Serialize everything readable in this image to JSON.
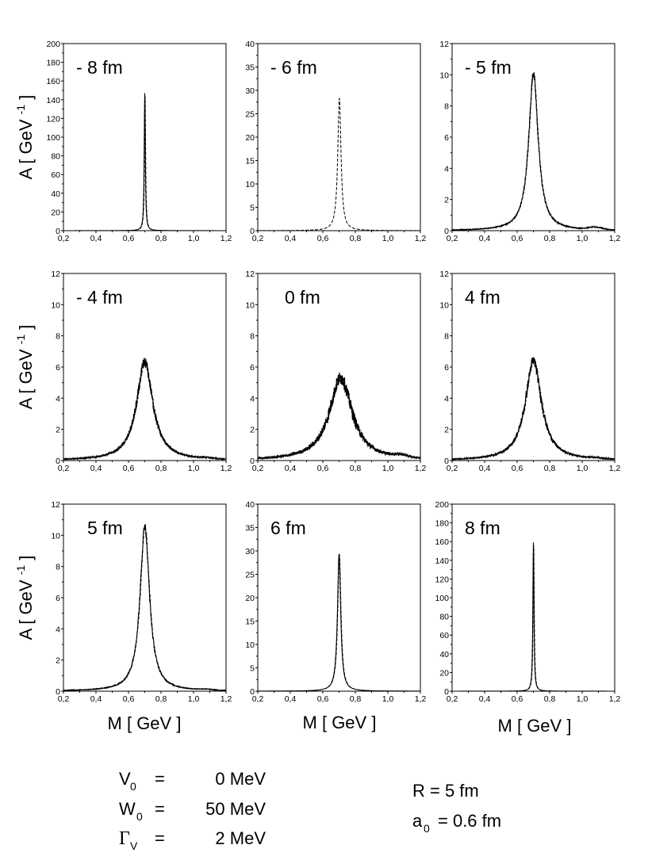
{
  "chart_data": [
    {
      "type": "line",
      "label": "- 8 fm",
      "ylim": [
        0,
        200
      ],
      "yticks": [
        "0",
        "20",
        "40",
        "60",
        "80",
        "100",
        "120",
        "140",
        "160",
        "180",
        "200"
      ],
      "xlim": [
        0.2,
        1.2
      ],
      "xticks": [
        "0,2",
        "0,4",
        "0,6",
        "0,8",
        "1,0",
        "1,2"
      ],
      "peak": {
        "x": 0.7,
        "y": 147
      },
      "width": 0.004,
      "noise": 0,
      "tail": 0,
      "dashed_only": false
    },
    {
      "type": "line",
      "label": "- 6 fm",
      "ylim": [
        0,
        40
      ],
      "yticks": [
        "0",
        "5",
        "10",
        "15",
        "20",
        "25",
        "30",
        "35",
        "40"
      ],
      "xlim": [
        0.2,
        1.2
      ],
      "xticks": [
        "0,2",
        "0,4",
        "0,6",
        "0,8",
        "1,0",
        "1,2"
      ],
      "peak": {
        "x": 0.7,
        "y": 28.3
      },
      "width": 0.012,
      "noise": 0,
      "tail": 0,
      "dashed_only": true
    },
    {
      "type": "line",
      "label": "- 5 fm",
      "ylim": [
        0,
        12
      ],
      "yticks": [
        "0",
        "2",
        "4",
        "6",
        "8",
        "10",
        "12"
      ],
      "xlim": [
        0.2,
        1.2
      ],
      "xticks": [
        "0,2",
        "0,4",
        "0,6",
        "0,8",
        "1,0",
        "1,2"
      ],
      "peak": {
        "x": 0.7,
        "y": 10.1
      },
      "width": 0.035,
      "noise": 0.25,
      "tail": 0.15,
      "dashed_only": false
    },
    {
      "type": "line",
      "label": "- 4 fm",
      "ylim": [
        0,
        12
      ],
      "yticks": [
        "0",
        "2",
        "4",
        "6",
        "8",
        "10",
        "12"
      ],
      "xlim": [
        0.2,
        1.2
      ],
      "xticks": [
        "0,2",
        "0,4",
        "0,6",
        "0,8",
        "1,0",
        "1,2"
      ],
      "peak": {
        "x": 0.7,
        "y": 6.3
      },
      "width": 0.06,
      "noise": 0.35,
      "tail": 0.05,
      "dashed_only": false
    },
    {
      "type": "line",
      "label": "0 fm",
      "ylim": [
        0,
        12
      ],
      "yticks": [
        "0",
        "2",
        "4",
        "6",
        "8",
        "10",
        "12"
      ],
      "xlim": [
        0.2,
        1.2
      ],
      "xticks": [
        "0,2",
        "0,4",
        "0,6",
        "0,8",
        "1,0",
        "1,2"
      ],
      "peak": {
        "x": 0.71,
        "y": 5.3
      },
      "width": 0.085,
      "noise": 0.45,
      "tail": 0.15,
      "dashed_only": false
    },
    {
      "type": "line",
      "label": "4 fm",
      "ylim": [
        0,
        12
      ],
      "yticks": [
        "0",
        "2",
        "4",
        "6",
        "8",
        "10",
        "12"
      ],
      "xlim": [
        0.2,
        1.2
      ],
      "xticks": [
        "0,2",
        "0,4",
        "0,6",
        "0,8",
        "1,0",
        "1,2"
      ],
      "peak": {
        "x": 0.7,
        "y": 6.4
      },
      "width": 0.06,
      "noise": 0.35,
      "tail": 0.05,
      "dashed_only": false
    },
    {
      "type": "line",
      "label": "5 fm",
      "ylim": [
        0,
        12
      ],
      "yticks": [
        "0",
        "2",
        "4",
        "6",
        "8",
        "10",
        "12"
      ],
      "xlim": [
        0.2,
        1.2
      ],
      "xticks": [
        "0,2",
        "0,4",
        "0,6",
        "0,8",
        "1,0",
        "1,2"
      ],
      "peak": {
        "x": 0.7,
        "y": 10.6
      },
      "width": 0.035,
      "noise": 0.25,
      "tail": 0.05,
      "dashed_only": false
    },
    {
      "type": "line",
      "label": "6 fm",
      "ylim": [
        0,
        40
      ],
      "yticks": [
        "0",
        "5",
        "10",
        "15",
        "20",
        "25",
        "30",
        "35",
        "40"
      ],
      "xlim": [
        0.2,
        1.2
      ],
      "xticks": [
        "0,2",
        "0,4",
        "0,6",
        "0,8",
        "1,0",
        "1,2"
      ],
      "peak": {
        "x": 0.7,
        "y": 29.3
      },
      "width": 0.012,
      "noise": 0,
      "tail": 0,
      "dashed_only": false
    },
    {
      "type": "line",
      "label": "8 fm",
      "ylim": [
        0,
        200
      ],
      "yticks": [
        "0",
        "20",
        "40",
        "60",
        "80",
        "100",
        "120",
        "140",
        "160",
        "180",
        "200"
      ],
      "xlim": [
        0.2,
        1.2
      ],
      "xticks": [
        "0,2",
        "0,4",
        "0,6",
        "0,8",
        "1,0",
        "1,2"
      ],
      "peak": {
        "x": 0.7,
        "y": 159
      },
      "width": 0.004,
      "noise": 0,
      "tail": 0,
      "dashed_only": false
    }
  ],
  "ylabel": "A [ GeV",
  "ylabel_sup": "-1",
  "ylabel_close": "]",
  "xlabel": "M  [ GeV ]",
  "params_left": [
    {
      "sym": "V",
      "sub": "0",
      "eq": "=",
      "val": "0 MeV"
    },
    {
      "sym": "W",
      "sub": "0",
      "eq": "=",
      "val": "50 MeV"
    },
    {
      "sym": "Γ",
      "sub": "V",
      "eq": "=",
      "val": "2 MeV"
    }
  ],
  "params_right": [
    {
      "sym": "R",
      "sub": "",
      "eq": "=",
      "val": "5 fm"
    },
    {
      "sym": "a",
      "sub": "0",
      "eq": "=",
      "val": "0.6 fm"
    }
  ],
  "colors": {
    "line": "#000000",
    "axis": "#000000"
  }
}
